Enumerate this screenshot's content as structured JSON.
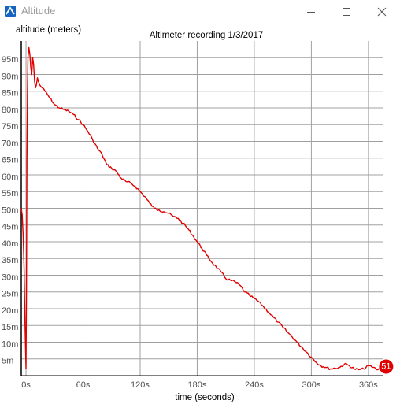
{
  "window": {
    "title": "Altitude",
    "buttons": [
      "minimize",
      "maximize",
      "close"
    ],
    "icons": {
      "app": "app-icon",
      "minimize": "minimize-icon",
      "maximize": "maximize-icon",
      "close": "close-icon"
    }
  },
  "colors": {
    "series": "#e00000",
    "grid": "#a0a0a0",
    "axis": "#000000",
    "marker": "#e00000"
  },
  "chart_data": {
    "type": "line",
    "title": "Altimeter recording 1/3/2017",
    "xlabel": "time (seconds)",
    "ylabel": "altitude (meters)",
    "xlim": [
      -5,
      375
    ],
    "ylim": [
      0,
      100
    ],
    "x_ticks": [
      0,
      60,
      120,
      180,
      240,
      300,
      360
    ],
    "x_tick_labels": [
      "0s",
      "60s",
      "120s",
      "180s",
      "240s",
      "300s",
      "360s"
    ],
    "y_ticks": [
      5,
      10,
      15,
      20,
      25,
      30,
      35,
      40,
      45,
      50,
      55,
      60,
      65,
      70,
      75,
      80,
      85,
      90,
      95
    ],
    "y_tick_labels": [
      "5m",
      "10m",
      "15m",
      "20m",
      "25m",
      "30m",
      "35m",
      "40m",
      "45m",
      "50m",
      "55m",
      "60m",
      "65m",
      "70m",
      "75m",
      "80m",
      "85m",
      "90m",
      "95m"
    ],
    "grid": true,
    "series": [
      {
        "color": "#e00000",
        "x": [
          -5,
          -4,
          -3,
          -2,
          -1,
          0,
          0.5,
          1,
          1.5,
          2,
          3,
          4,
          5,
          6,
          7,
          8,
          9,
          10,
          11,
          12,
          14,
          17,
          20,
          25,
          30,
          35,
          40,
          45,
          50,
          55,
          60,
          65,
          70,
          75,
          80,
          85,
          90,
          95,
          100,
          105,
          110,
          115,
          120,
          125,
          130,
          135,
          140,
          145,
          150,
          155,
          160,
          165,
          170,
          175,
          180,
          185,
          190,
          195,
          200,
          205,
          210,
          215,
          220,
          225,
          230,
          235,
          240,
          245,
          250,
          255,
          260,
          265,
          270,
          275,
          280,
          285,
          290,
          295,
          300,
          305,
          310,
          315,
          320,
          325,
          330,
          335,
          340,
          345,
          350,
          355,
          360,
          365,
          368,
          370,
          372
        ],
        "y": [
          50,
          48,
          42,
          32,
          15,
          2,
          25,
          65,
          85,
          95,
          98,
          96,
          92,
          90,
          95,
          93,
          88,
          86,
          87,
          89,
          87,
          86,
          85,
          83,
          81,
          80,
          79.5,
          79,
          78,
          76.5,
          75,
          73,
          70.5,
          68,
          66,
          63,
          62,
          61,
          59,
          58,
          57.5,
          56.5,
          55,
          53.5,
          51.5,
          50,
          49.5,
          49,
          48.5,
          47.5,
          47,
          45.5,
          44,
          42,
          40,
          38,
          36,
          34,
          32.5,
          31,
          29,
          28.5,
          28,
          27,
          25,
          24,
          23,
          22,
          20.5,
          19,
          17.5,
          16,
          14.5,
          13,
          11.5,
          10,
          8.5,
          7,
          5.5,
          4,
          3,
          2.5,
          2,
          2.2,
          2.5,
          3.5,
          3,
          2,
          1.8,
          2,
          3,
          2.5,
          2,
          1.8,
          2
        ]
      }
    ],
    "end_marker": {
      "label": "51"
    }
  }
}
